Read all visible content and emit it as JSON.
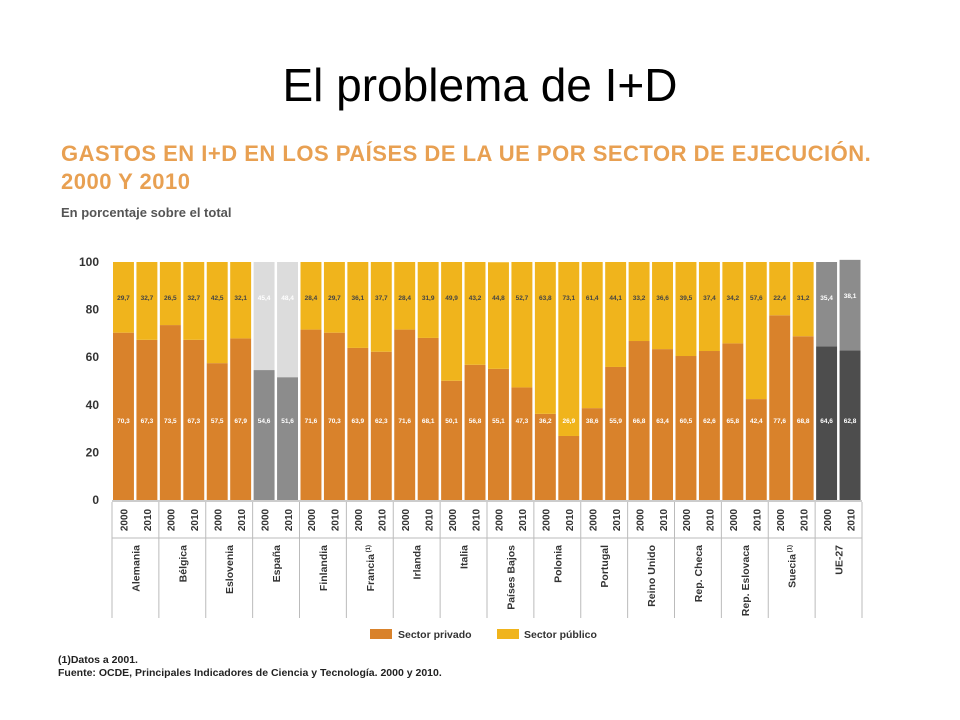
{
  "slide": {
    "title": "El problema de  I+D"
  },
  "chart_data": {
    "type": "bar",
    "stacked": true,
    "title": "GASTOS EN I+D EN LOS PAÍSES DE LA UE POR SECTOR DE EJECUCIÓN. 2000 y 2010",
    "subtitle": "En porcentaje sobre el total",
    "ylim": [
      0,
      100
    ],
    "yticks": [
      0,
      20,
      40,
      60,
      80,
      100
    ],
    "grid": false,
    "legend_position": "bottom-center",
    "countries": [
      "Alemania",
      "Bélgica",
      "Eslovenia",
      "España",
      "Finlandia",
      "Francia",
      "Irlanda",
      "Italia",
      "Países Bajos",
      "Polonia",
      "Portugal",
      "Reino Unido",
      "Rep. Checa",
      "Rep. Eslovaca",
      "Suecia",
      "UE-27"
    ],
    "country_superscripts": [
      "",
      "",
      "",
      "",
      "",
      "(1)",
      "",
      "",
      "",
      "",
      "",
      "",
      "",
      "",
      "(1)",
      ""
    ],
    "years": [
      "2000",
      "2010"
    ],
    "categories": [
      "Alemania 2000",
      "Alemania 2010",
      "Bélgica 2000",
      "Bélgica 2010",
      "Eslovenia 2000",
      "Eslovenia 2010",
      "España 2000",
      "España 2010",
      "Finlandia 2000",
      "Finlandia 2010",
      "Francia 2000",
      "Francia 2010",
      "Irlanda 2000",
      "Irlanda 2010",
      "Italia 2000",
      "Italia 2010",
      "Países Bajos 2000",
      "Países Bajos 2010",
      "Polonia 2000",
      "Polonia 2010",
      "Portugal 2000",
      "Portugal 2010",
      "Reino Unido 2000",
      "Reino Unido 2010",
      "Rep. Checa 2000",
      "Rep. Checa 2010",
      "Rep. Eslovaca 2000",
      "Rep. Eslovaca 2010",
      "Suecia 2000",
      "Suecia 2010",
      "UE-27 2000",
      "UE-27 2010"
    ],
    "series": [
      {
        "name": "Sector privado",
        "color": "#d9822b",
        "values": [
          70.3,
          67.3,
          73.5,
          67.3,
          57.5,
          67.9,
          54.6,
          51.6,
          71.6,
          70.3,
          63.9,
          62.3,
          71.6,
          68.1,
          50.1,
          56.8,
          55.1,
          47.3,
          36.2,
          26.9,
          38.6,
          55.9,
          66.8,
          63.4,
          60.5,
          62.6,
          65.8,
          42.4,
          77.6,
          68.8,
          64.6,
          62.8
        ]
      },
      {
        "name": "Sector público",
        "color": "#f0b41c",
        "values": [
          29.7,
          32.7,
          26.5,
          32.7,
          42.5,
          32.1,
          45.4,
          48.4,
          28.4,
          29.7,
          36.1,
          37.7,
          28.4,
          31.9,
          49.9,
          43.2,
          44.8,
          52.7,
          63.8,
          73.1,
          61.4,
          44.1,
          33.2,
          36.6,
          39.5,
          37.4,
          34.2,
          57.6,
          22.4,
          31.2,
          35.4,
          38.1
        ]
      }
    ],
    "highlight_colors": {
      "España": {
        "privado": "#8c8c8c",
        "publico": "#dcdcdc"
      },
      "UE-27": {
        "privado": "#4d4d4d",
        "publico": "#8c8c8c"
      }
    },
    "text_colors": {
      "axis": "#333333",
      "title": "#e8a052"
    }
  },
  "footnotes": {
    "note": "(1)Datos a 2001.",
    "source": "Fuente: OCDE, Principales Indicadores de Ciencia y Tecnología. 2000 y 2010."
  }
}
